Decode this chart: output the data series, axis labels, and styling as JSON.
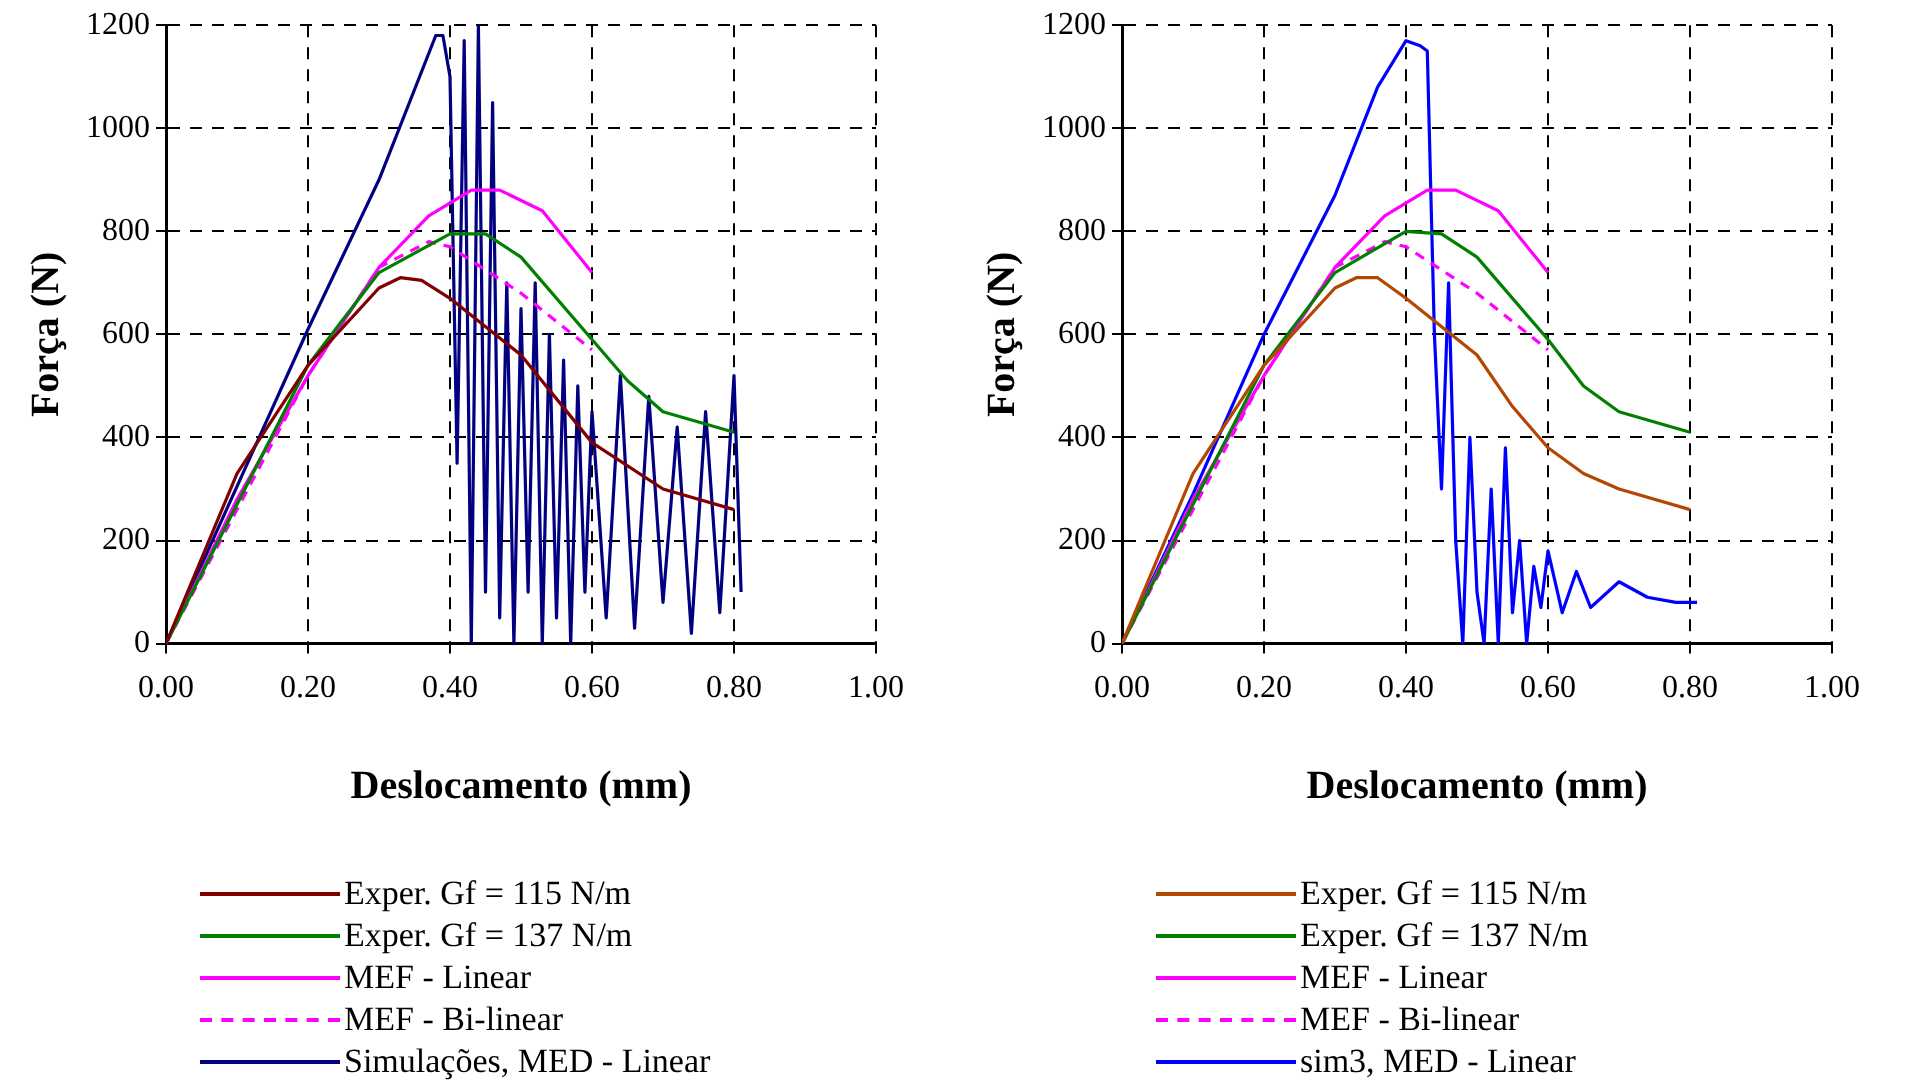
{
  "chart_data": [
    {
      "type": "line",
      "xlabel": "Deslocamento (mm)",
      "ylabel": "Força (N)",
      "xlim": [
        0,
        1
      ],
      "ylim": [
        0,
        1200
      ],
      "xticks": [
        {
          "value": 0,
          "label": "0.00"
        },
        {
          "value": 0.2,
          "label": "0.20"
        },
        {
          "value": 0.4,
          "label": "0.40"
        },
        {
          "value": 0.6,
          "label": "0.60"
        },
        {
          "value": 0.8,
          "label": "0.80"
        },
        {
          "value": 1,
          "label": "1.00"
        }
      ],
      "yticks": [
        0,
        200,
        400,
        600,
        800,
        1000,
        1200
      ],
      "grid": true,
      "legend": "bottom",
      "marker": "none",
      "series": [
        {
          "name": "Exper. Gf = 115 N/m",
          "color": "#800000",
          "line_style": "solid",
          "x": [
            0,
            0.1,
            0.2,
            0.3,
            0.33,
            0.36,
            0.4,
            0.5,
            0.6,
            0.7,
            0.8
          ],
          "values": [
            0,
            330,
            540,
            690,
            710,
            705,
            670,
            560,
            390,
            300,
            260
          ]
        },
        {
          "name": "Exper. Gf = 137 N/m",
          "color": "#008000",
          "line_style": "solid",
          "x": [
            0,
            0.2,
            0.3,
            0.4,
            0.45,
            0.5,
            0.6,
            0.65,
            0.7,
            0.8
          ],
          "values": [
            0,
            540,
            720,
            795,
            795,
            750,
            590,
            510,
            450,
            410
          ]
        },
        {
          "name": "MEF - Linear",
          "color": "#ff00ff",
          "line_style": "solid",
          "x": [
            0,
            0.1,
            0.2,
            0.3,
            0.37,
            0.43,
            0.47,
            0.53,
            0.6
          ],
          "values": [
            0,
            280,
            520,
            730,
            830,
            880,
            880,
            840,
            720
          ]
        },
        {
          "name": "MEF - Bi-linear",
          "color": "#ff00ff",
          "line_style": "dashed",
          "x": [
            0,
            0.2,
            0.3,
            0.37,
            0.4,
            0.5,
            0.6
          ],
          "values": [
            0,
            520,
            730,
            780,
            770,
            680,
            570
          ]
        },
        {
          "name": "Simulações, MED - Linear",
          "color": "#000080",
          "line_style": "solid",
          "x": [
            0,
            0.2,
            0.3,
            0.38,
            0.39,
            0.4,
            0.41,
            0.42,
            0.43,
            0.44,
            0.45,
            0.46,
            0.47,
            0.48,
            0.49,
            0.5,
            0.51,
            0.52,
            0.53,
            0.54,
            0.55,
            0.56,
            0.57,
            0.58,
            0.59,
            0.6,
            0.62,
            0.64,
            0.66,
            0.68,
            0.7,
            0.72,
            0.74,
            0.76,
            0.78,
            0.8,
            0.81
          ],
          "values": [
            0,
            610,
            900,
            1180,
            1180,
            1100,
            350,
            1170,
            0,
            1200,
            100,
            1050,
            50,
            700,
            0,
            650,
            100,
            700,
            0,
            600,
            50,
            550,
            0,
            500,
            100,
            450,
            50,
            520,
            30,
            480,
            80,
            420,
            20,
            450,
            60,
            520,
            100
          ]
        }
      ]
    },
    {
      "type": "line",
      "xlabel": "Deslocamento (mm)",
      "ylabel": "Força (N)",
      "xlim": [
        0,
        1
      ],
      "ylim": [
        0,
        1200
      ],
      "xticks": [
        {
          "value": 0,
          "label": "0.00"
        },
        {
          "value": 0.2,
          "label": "0.20"
        },
        {
          "value": 0.4,
          "label": "0.40"
        },
        {
          "value": 0.6,
          "label": "0.60"
        },
        {
          "value": 0.8,
          "label": "0.80"
        },
        {
          "value": 1,
          "label": "1.00"
        }
      ],
      "yticks": [
        0,
        200,
        400,
        600,
        800,
        1000,
        1200
      ],
      "grid": true,
      "legend": "bottom",
      "marker": "none",
      "series": [
        {
          "name": "Exper. Gf = 115 N/m",
          "color": "#b34700",
          "line_style": "solid",
          "x": [
            0,
            0.1,
            0.2,
            0.3,
            0.33,
            0.36,
            0.4,
            0.5,
            0.55,
            0.6,
            0.65,
            0.7,
            0.8
          ],
          "values": [
            0,
            330,
            540,
            690,
            710,
            710,
            670,
            560,
            460,
            380,
            330,
            300,
            260
          ]
        },
        {
          "name": "Exper. Gf = 137 N/m",
          "color": "#008000",
          "line_style": "solid",
          "x": [
            0,
            0.2,
            0.3,
            0.4,
            0.45,
            0.5,
            0.6,
            0.65,
            0.7,
            0.75,
            0.8
          ],
          "values": [
            0,
            540,
            720,
            800,
            795,
            750,
            590,
            500,
            450,
            430,
            410
          ]
        },
        {
          "name": "MEF - Linear",
          "color": "#ff00ff",
          "line_style": "solid",
          "x": [
            0,
            0.1,
            0.2,
            0.3,
            0.37,
            0.43,
            0.47,
            0.53,
            0.6
          ],
          "values": [
            0,
            280,
            520,
            730,
            830,
            880,
            880,
            840,
            720
          ]
        },
        {
          "name": "MEF - Bi-linear",
          "color": "#ff00ff",
          "line_style": "dashed",
          "x": [
            0,
            0.2,
            0.3,
            0.37,
            0.4,
            0.5,
            0.6
          ],
          "values": [
            0,
            520,
            730,
            780,
            770,
            680,
            570
          ]
        },
        {
          "name": "sim3, MED - Linear",
          "color": "#0000ff",
          "line_style": "solid",
          "x": [
            0,
            0.1,
            0.2,
            0.3,
            0.36,
            0.4,
            0.42,
            0.43,
            0.44,
            0.45,
            0.46,
            0.47,
            0.48,
            0.49,
            0.5,
            0.51,
            0.52,
            0.53,
            0.54,
            0.55,
            0.56,
            0.57,
            0.58,
            0.59,
            0.6,
            0.62,
            0.64,
            0.66,
            0.7,
            0.74,
            0.78,
            0.81
          ],
          "values": [
            0,
            290,
            600,
            870,
            1080,
            1170,
            1160,
            1150,
            600,
            300,
            700,
            200,
            0,
            400,
            100,
            0,
            300,
            0,
            380,
            60,
            200,
            0,
            150,
            70,
            180,
            60,
            140,
            70,
            120,
            90,
            80,
            80
          ]
        }
      ]
    }
  ]
}
